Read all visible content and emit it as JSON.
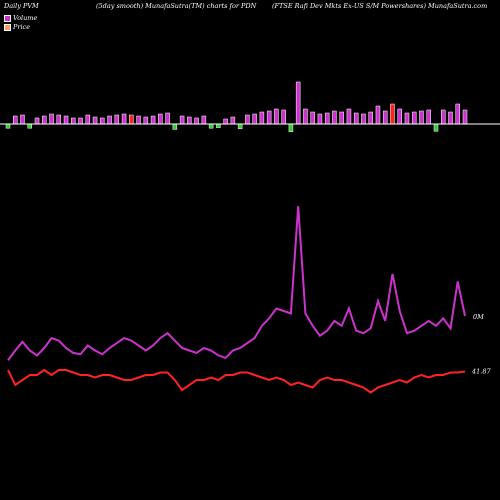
{
  "header": {
    "left": "Daily PVM",
    "middle": "(5day smooth) MunafaSutra(TM) charts for PDN",
    "right": "(FTSE Rafi  Dev   Mkts Ex-US S/M Powershares) MunafaSutra.com"
  },
  "legend": [
    {
      "label": "Volume",
      "color": "#cc33cc"
    },
    {
      "label": "Price",
      "color": "#ff9966"
    }
  ],
  "colors": {
    "background": "#000000",
    "up_bar": "#cc33cc",
    "down_bar": "#33cc33",
    "red_bar": "#ff2222",
    "volume_line": "#cc33cc",
    "price_line": "#ff2222",
    "baseline": "#ffffff"
  },
  "chart_data": {
    "type": "line",
    "title": "(5day smooth) MunafaSutra(TM) charts for PDN",
    "series": [
      {
        "name": "Volume",
        "values": [
          20,
          28,
          35,
          28,
          24,
          30,
          38,
          36,
          30,
          26,
          25,
          32,
          28,
          25,
          30,
          34,
          38,
          36,
          32,
          28,
          32,
          38,
          42,
          36,
          30,
          28,
          26,
          30,
          28,
          24,
          22,
          28,
          30,
          34,
          38,
          48,
          54,
          62,
          60,
          58,
          145,
          58,
          48,
          40,
          44,
          52,
          48,
          62,
          44,
          42,
          46,
          68,
          52,
          90,
          60,
          42,
          44,
          48,
          52,
          48,
          54,
          46,
          84,
          56
        ]
      },
      {
        "name": "Price",
        "values": [
          41.9,
          41.6,
          41.7,
          41.8,
          41.8,
          41.9,
          41.8,
          41.9,
          41.9,
          41.85,
          41.8,
          41.8,
          41.75,
          41.8,
          41.8,
          41.75,
          41.7,
          41.7,
          41.75,
          41.8,
          41.8,
          41.85,
          41.85,
          41.7,
          41.5,
          41.6,
          41.7,
          41.7,
          41.75,
          41.7,
          41.8,
          41.8,
          41.85,
          41.85,
          41.8,
          41.75,
          41.7,
          41.75,
          41.7,
          41.6,
          41.65,
          41.6,
          41.55,
          41.7,
          41.75,
          41.7,
          41.7,
          41.65,
          41.6,
          41.55,
          41.45,
          41.55,
          41.6,
          41.65,
          41.7,
          41.65,
          41.75,
          41.8,
          41.75,
          41.8,
          41.8,
          41.85,
          41.85,
          41.87
        ]
      }
    ],
    "bars": {
      "heights": [
        7,
        8,
        9,
        7,
        6,
        8,
        10,
        9,
        8,
        6,
        6,
        9,
        7,
        6,
        8,
        9,
        10,
        9,
        8,
        7,
        8,
        10,
        11,
        9,
        8,
        7,
        6,
        8,
        7,
        6,
        5,
        7,
        8,
        9,
        10,
        12,
        13,
        15,
        14,
        13,
        42,
        15,
        12,
        10,
        11,
        13,
        12,
        15,
        11,
        10,
        12,
        18,
        13,
        20,
        15,
        11,
        12,
        13,
        14,
        12,
        14,
        12,
        20,
        14
      ],
      "colors": [
        "g",
        "m",
        "m",
        "g",
        "m",
        "m",
        "m",
        "m",
        "m",
        "m",
        "m",
        "m",
        "m",
        "m",
        "m",
        "m",
        "m",
        "r",
        "m",
        "m",
        "m",
        "m",
        "m",
        "g",
        "m",
        "m",
        "m",
        "m",
        "g",
        "g",
        "m",
        "m",
        "g",
        "m",
        "m",
        "m",
        "m",
        "m",
        "m",
        "g",
        "m",
        "m",
        "m",
        "m",
        "m",
        "m",
        "m",
        "m",
        "m",
        "m",
        "m",
        "m",
        "m",
        "r",
        "m",
        "m",
        "m",
        "m",
        "m",
        "g",
        "m",
        "m",
        "m",
        "m"
      ]
    },
    "value_labels": [
      "0M",
      "41.87"
    ]
  }
}
